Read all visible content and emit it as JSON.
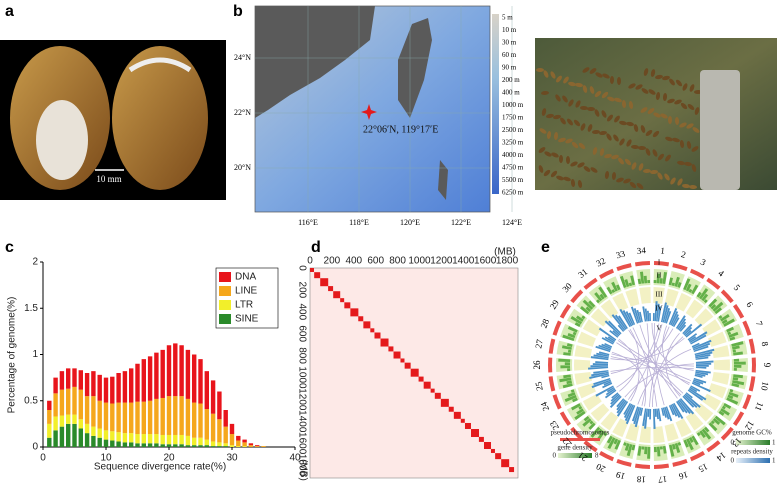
{
  "panels": {
    "a": "a",
    "b": "b",
    "c": "c",
    "d": "d",
    "e": "e"
  },
  "photo_a": {
    "scale_bar": "10 mm"
  },
  "map": {
    "latitudes": [
      "24°N",
      "22°N",
      "20°N"
    ],
    "longitudes": [
      "116°E",
      "118°E",
      "120°E",
      "122°E",
      "124°E"
    ],
    "site": "22°06′N, 119°17′E",
    "depths": [
      "5 m",
      "10 m",
      "30 m",
      "60 m",
      "90 m",
      "200 m",
      "400 m",
      "1000 m",
      "1750 m",
      "2500 m",
      "3250 m",
      "4000 m",
      "4750 m",
      "5500 m",
      "6250 m"
    ]
  },
  "chart_data": {
    "type": "stacked-bar",
    "xlabel": "Sequence divergence rate(%)",
    "ylabel": "Percentage of genome(%)",
    "xlim": [
      0,
      40
    ],
    "xticks": [
      0,
      10,
      20,
      30,
      40
    ],
    "ylim": [
      0,
      2
    ],
    "yticks": [
      0,
      0.5,
      1,
      1.5,
      2
    ],
    "x": [
      1,
      2,
      3,
      4,
      5,
      6,
      7,
      8,
      9,
      10,
      11,
      12,
      13,
      14,
      15,
      16,
      17,
      18,
      19,
      20,
      21,
      22,
      23,
      24,
      25,
      26,
      27,
      28,
      29,
      30,
      31,
      32,
      33,
      34,
      35
    ],
    "series": [
      {
        "name": "DNA",
        "color": "#e8141b",
        "values": [
          0.1,
          0.17,
          0.2,
          0.22,
          0.2,
          0.21,
          0.25,
          0.27,
          0.28,
          0.27,
          0.29,
          0.32,
          0.34,
          0.37,
          0.41,
          0.46,
          0.48,
          0.5,
          0.52,
          0.55,
          0.57,
          0.55,
          0.53,
          0.52,
          0.48,
          0.41,
          0.36,
          0.3,
          0.18,
          0.11,
          0.05,
          0.03,
          0.02,
          0.01,
          0
        ]
      },
      {
        "name": "LINE",
        "color": "#f5a71c",
        "values": [
          0.15,
          0.25,
          0.28,
          0.28,
          0.3,
          0.32,
          0.3,
          0.33,
          0.3,
          0.3,
          0.3,
          0.32,
          0.33,
          0.33,
          0.35,
          0.35,
          0.36,
          0.38,
          0.4,
          0.42,
          0.42,
          0.42,
          0.4,
          0.38,
          0.37,
          0.33,
          0.3,
          0.25,
          0.18,
          0.12,
          0.06,
          0.04,
          0.02,
          0.01,
          0.01
        ]
      },
      {
        "name": "LTR",
        "color": "#f2ef2a",
        "values": [
          0.15,
          0.15,
          0.12,
          0.1,
          0.1,
          0.1,
          0.1,
          0.1,
          0.1,
          0.1,
          0.1,
          0.1,
          0.1,
          0.1,
          0.1,
          0.1,
          0.1,
          0.1,
          0.1,
          0.1,
          0.1,
          0.1,
          0.1,
          0.08,
          0.08,
          0.06,
          0.05,
          0.04,
          0.03,
          0.02,
          0.01,
          0.01,
          0,
          0,
          0
        ]
      },
      {
        "name": "SINE",
        "color": "#2a8a2a",
        "values": [
          0.1,
          0.18,
          0.22,
          0.25,
          0.25,
          0.2,
          0.15,
          0.12,
          0.1,
          0.08,
          0.07,
          0.06,
          0.05,
          0.05,
          0.04,
          0.04,
          0.04,
          0.04,
          0.03,
          0.03,
          0.03,
          0.03,
          0.02,
          0.02,
          0.02,
          0.02,
          0.01,
          0.01,
          0.01,
          0,
          0,
          0,
          0,
          0,
          0
        ]
      }
    ]
  },
  "hic": {
    "unit": "(MB)",
    "ticks": [
      0,
      200,
      400,
      600,
      800,
      1000,
      1200,
      1400,
      1600,
      1800
    ]
  },
  "circos": {
    "chromosomes": [
      "1",
      "2",
      "3",
      "4",
      "5",
      "6",
      "7",
      "8",
      "9",
      "10",
      "11",
      "12",
      "13",
      "14",
      "15",
      "16",
      "17",
      "18",
      "19",
      "20",
      "21",
      "22",
      "23",
      "24",
      "25",
      "26",
      "27",
      "28",
      "29",
      "30",
      "31",
      "32",
      "33",
      "34"
    ],
    "rings": [
      "I",
      "II",
      "III",
      "IV",
      "V"
    ],
    "legend": {
      "pseudochromosomes": "pseudochromosomes",
      "gene_density": "gene density",
      "gene_min": "0",
      "gene_max": "8",
      "gc": "genome GC%",
      "gc_min": "0",
      "gc_max": "1",
      "repeats": "repeats density",
      "rep_min": "0",
      "rep_max": "1"
    }
  }
}
